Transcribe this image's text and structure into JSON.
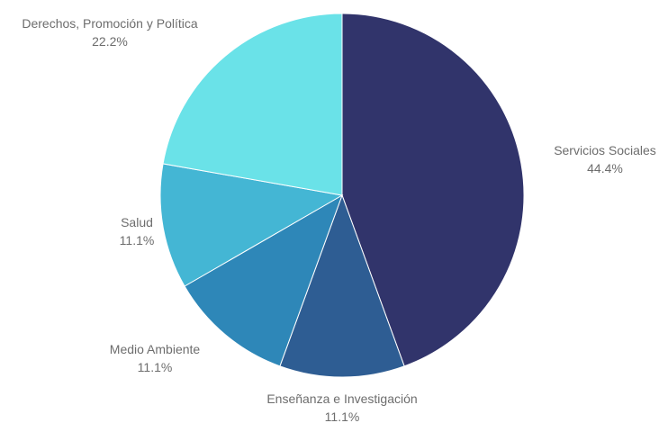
{
  "chart_data": {
    "type": "pie",
    "title": "",
    "slices": [
      {
        "label": "Servicios Sociales",
        "value": 44.4,
        "percent_label": "44.4%",
        "color": "#31346b"
      },
      {
        "label": "Enseñanza e Investigación",
        "value": 11.1,
        "percent_label": "11.1%",
        "color": "#2e5d93"
      },
      {
        "label": "Medio Ambiente",
        "value": 11.1,
        "percent_label": "11.1%",
        "color": "#2e87b8"
      },
      {
        "label": "Salud",
        "value": 11.1,
        "percent_label": "11.1%",
        "color": "#44b6d4"
      },
      {
        "label": "Derechos, Promoción y Política",
        "value": 22.2,
        "percent_label": "22.2%",
        "color": "#6ae2e8"
      }
    ],
    "start_angle": "top (12 o'clock)",
    "direction": "clockwise",
    "legend": "none",
    "labels": "outside slices with name and percent"
  }
}
